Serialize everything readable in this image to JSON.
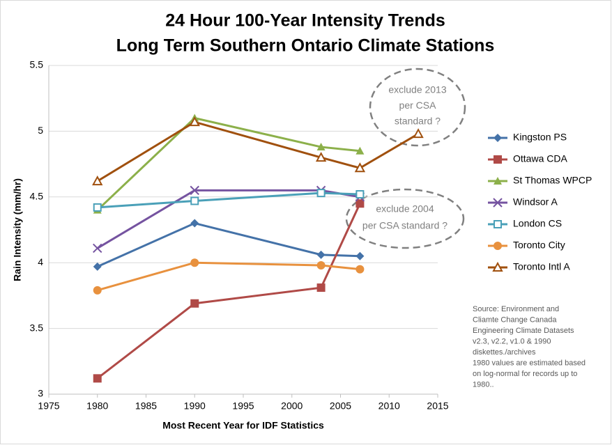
{
  "chart_data": {
    "type": "line",
    "title": [
      "24 Hour 100-Year Intensity Trends",
      "Long Term Southern Ontario Climate Stations"
    ],
    "x_label": "Most Recent Year for IDF Statistics",
    "y_label": "Rain Intensity (mm/hr)",
    "x": [
      1980,
      1990,
      2003,
      2007,
      2013
    ],
    "series": [
      {
        "name": "Kingston PS",
        "color": "#4472a8",
        "marker": "diamond",
        "values": [
          3.97,
          4.3,
          4.06,
          4.05,
          null
        ]
      },
      {
        "name": "Ottawa CDA",
        "color": "#b04a47",
        "marker": "square",
        "values": [
          3.12,
          3.69,
          3.81,
          4.45,
          null
        ]
      },
      {
        "name": "St Thomas WPCP",
        "color": "#8cb04a",
        "marker": "triangle",
        "values": [
          4.4,
          5.1,
          4.88,
          4.85,
          null
        ]
      },
      {
        "name": "Windsor A",
        "color": "#7553a0",
        "marker": "x",
        "values": [
          4.11,
          4.55,
          4.55,
          4.5,
          null
        ]
      },
      {
        "name": "London CS",
        "color": "#4aa0b8",
        "marker": "open-square",
        "values": [
          4.42,
          4.47,
          4.53,
          4.52,
          null
        ]
      },
      {
        "name": "Toronto City",
        "color": "#e8913e",
        "marker": "circle",
        "values": [
          3.79,
          4.0,
          3.98,
          3.95,
          null
        ]
      },
      {
        "name": "Toronto Intl A",
        "color": "#a0500e",
        "marker": "open-triangle",
        "values": [
          4.62,
          5.07,
          4.8,
          4.72,
          4.98
        ]
      }
    ],
    "xlim": [
      1975,
      2015
    ],
    "xticks": [
      1975,
      1980,
      1985,
      1990,
      1995,
      2000,
      2005,
      2010,
      2015
    ],
    "ylim": [
      3,
      5.5
    ],
    "yticks": [
      3,
      3.5,
      4,
      4.5,
      5,
      5.5
    ],
    "grid": true,
    "legend": "right",
    "annotations": [
      {
        "lines": [
          "exclude 2013",
          "per CSA",
          "standard ?"
        ]
      },
      {
        "lines": [
          "exclude 2004",
          "per CSA standard ?"
        ]
      }
    ],
    "source_note": [
      "Source: Environment and",
      "Cliamte Change Canada",
      "Engineering Climate Datasets",
      "v2.3, v2.2, v1.0 & 1990",
      "diskettes./archives",
      "1980 values are estimated based",
      "on log-normal for records up to",
      "1980.."
    ]
  }
}
